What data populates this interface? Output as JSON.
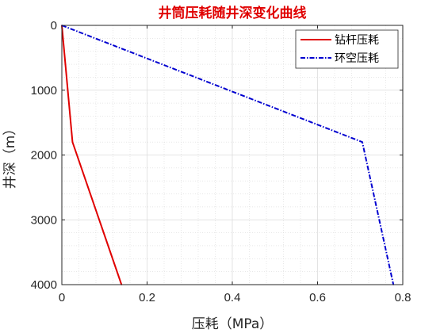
{
  "chart_data": {
    "type": "line",
    "title": "井筒压耗随井深变化曲线",
    "xlabel": "压耗（MPa）",
    "ylabel": "井深（m）",
    "xlim": [
      0,
      0.8
    ],
    "ylim": [
      0,
      4000
    ],
    "y_reversed": true,
    "x_ticks": [
      0,
      0.2,
      0.4,
      0.6,
      0.8
    ],
    "x_tick_labels": [
      "0",
      "0.2",
      "0.4",
      "0.6",
      "0.8"
    ],
    "y_ticks": [
      0,
      1000,
      2000,
      3000,
      4000
    ],
    "y_tick_labels": [
      "0",
      "1000",
      "2000",
      "3000",
      "4000"
    ],
    "grid": true,
    "minor_grid": true,
    "legend_position": "top-right",
    "series": [
      {
        "name": "钻杆压耗",
        "color": "#e00000",
        "line_style": "solid",
        "points": [
          [
            0,
            0
          ],
          [
            0.025,
            1800
          ],
          [
            0.14,
            4000
          ]
        ]
      },
      {
        "name": "环空压耗",
        "color": "#0000d0",
        "line_style": "dashdot",
        "points": [
          [
            0,
            0
          ],
          [
            0.705,
            1800
          ],
          [
            0.778,
            4000
          ]
        ]
      }
    ]
  }
}
